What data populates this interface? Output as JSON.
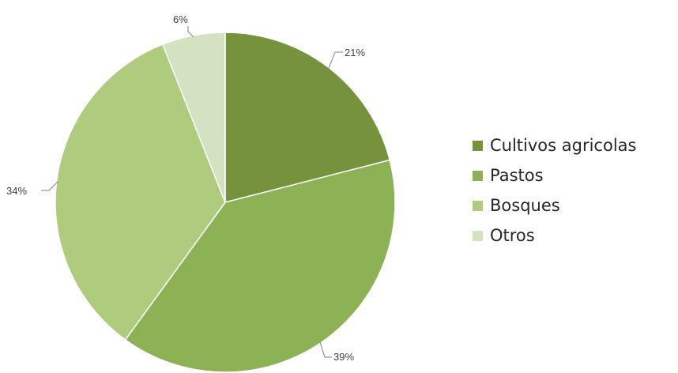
{
  "chart_data": {
    "type": "pie",
    "title": "",
    "categories": [
      "Cultivos agricolas",
      "Pastos",
      "Bosques",
      "Otros"
    ],
    "values": [
      21,
      39,
      34,
      6
    ],
    "unit": "%",
    "data_labels": [
      "21%",
      "39%",
      "34%",
      "6%"
    ],
    "colors": [
      "#76923c",
      "#8db255",
      "#aecb7e",
      "#d3e2c0"
    ],
    "slice_edge_color": "#ffffff",
    "leader_line_color": "#7f7f7f",
    "start_angle_deg": 0,
    "direction": "clockwise",
    "legend": {
      "position": "right",
      "entries": [
        "Cultivos agricolas",
        "Pastos",
        "Bosques",
        "Otros"
      ]
    }
  }
}
